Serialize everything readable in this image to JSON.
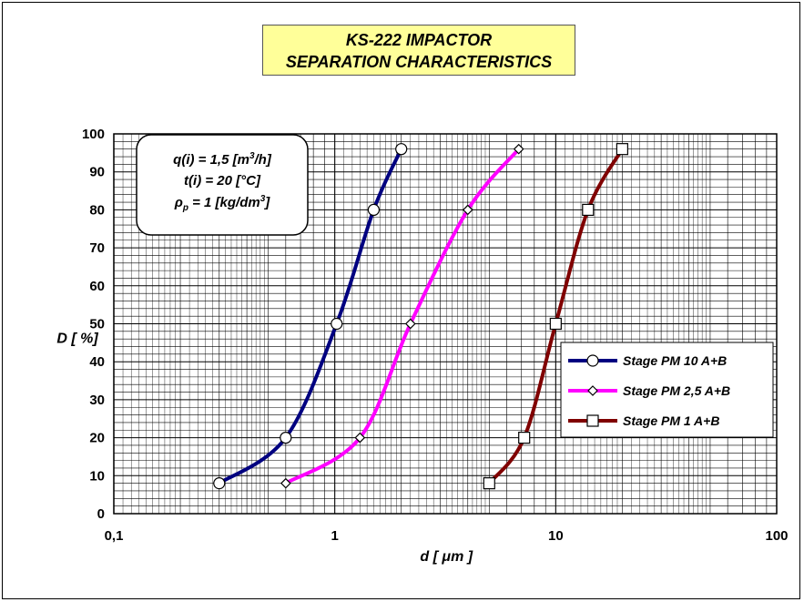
{
  "title": {
    "line1": "KS-222 IMPACTOR",
    "line2": "SEPARATION CHARACTERISTICS",
    "background": "#ffff99"
  },
  "conditions": {
    "flow_prefix": "q(i) = 1,5 [m",
    "flow_sup": "3",
    "flow_suffix": "/h]",
    "temp": "t(i) = 20 [°C]",
    "density_symbol": "ρ",
    "density_sub": "p",
    "density_mid": " = 1 [kg/dm",
    "density_sup": "3",
    "density_suffix": "]"
  },
  "chart_data": {
    "type": "line",
    "title": "KS-222 IMPACTOR SEPARATION CHARACTERISTICS",
    "xlabel": "d [ μm ]",
    "ylabel": "D [ %]",
    "xscale": "log",
    "xlim": [
      0.1,
      100
    ],
    "ylim": [
      0,
      100
    ],
    "x_tick_labels": [
      "0,1",
      "1",
      "10",
      "100"
    ],
    "y_tick_labels": [
      "0",
      "10",
      "20",
      "30",
      "40",
      "50",
      "60",
      "70",
      "80",
      "90",
      "100"
    ],
    "grid": true,
    "legend_position": "right",
    "series": [
      {
        "name": "Stage PM 10 A+B",
        "color": "#000080",
        "marker": "circle",
        "x": [
          0.3,
          0.6,
          1.02,
          1.5,
          2.0
        ],
        "y": [
          8,
          20,
          50,
          80,
          96
        ]
      },
      {
        "name": "Stage PM 2,5 A+B",
        "color": "#ff00ff",
        "marker": "diamond",
        "x": [
          0.6,
          1.3,
          2.2,
          4.0,
          6.8
        ],
        "y": [
          8,
          20,
          50,
          80,
          96
        ]
      },
      {
        "name": "Stage PM 1 A+B",
        "color": "#800000",
        "marker": "square",
        "x": [
          5.0,
          7.2,
          10.0,
          14.0,
          20.0
        ],
        "y": [
          8,
          20,
          50,
          80,
          96
        ]
      }
    ]
  }
}
